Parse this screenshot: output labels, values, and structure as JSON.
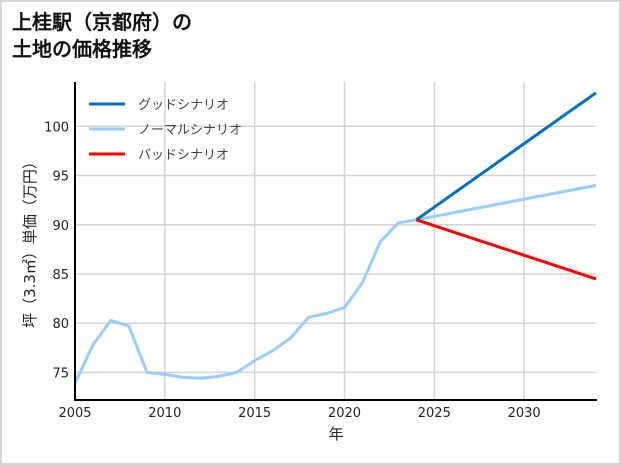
{
  "title": {
    "line1": "上桂駅（京都府）の",
    "line2": "土地の価格推移"
  },
  "chart_data": {
    "type": "line",
    "title": "上桂駅（京都府）の土地の価格推移",
    "xlabel": "年",
    "ylabel": "坪（3.3㎡）単価（万円）",
    "xlim": [
      2005,
      2034
    ],
    "ylim": [
      72.2,
      104.5
    ],
    "xticks": [
      2005,
      2010,
      2015,
      2020,
      2025,
      2030
    ],
    "yticks": [
      75,
      80,
      85,
      90,
      95,
      100
    ],
    "grid": true,
    "legend_position": "upper left",
    "series": [
      {
        "name": "グッドシナリオ",
        "color": "#0070c0",
        "x": [
          2024,
          2034
        ],
        "values": [
          90.5,
          103.4
        ]
      },
      {
        "name": "ノーマルシナリオ",
        "color": "#99ccff",
        "x": [
          2005,
          2006,
          2007,
          2008,
          2009,
          2010,
          2011,
          2012,
          2013,
          2014,
          2015,
          2016,
          2017,
          2018,
          2019,
          2020,
          2021,
          2022,
          2023,
          2024,
          2034
        ],
        "values": [
          73.9,
          77.8,
          80.3,
          79.7,
          75.0,
          74.8,
          74.5,
          74.4,
          74.6,
          75.0,
          76.2,
          77.2,
          78.5,
          80.6,
          81.0,
          81.6,
          84.1,
          88.3,
          90.2,
          90.5,
          94.0
        ]
      },
      {
        "name": "バッドシナリオ",
        "color": "#ff0000",
        "x": [
          2024,
          2034
        ],
        "values": [
          90.5,
          84.5
        ]
      }
    ]
  }
}
